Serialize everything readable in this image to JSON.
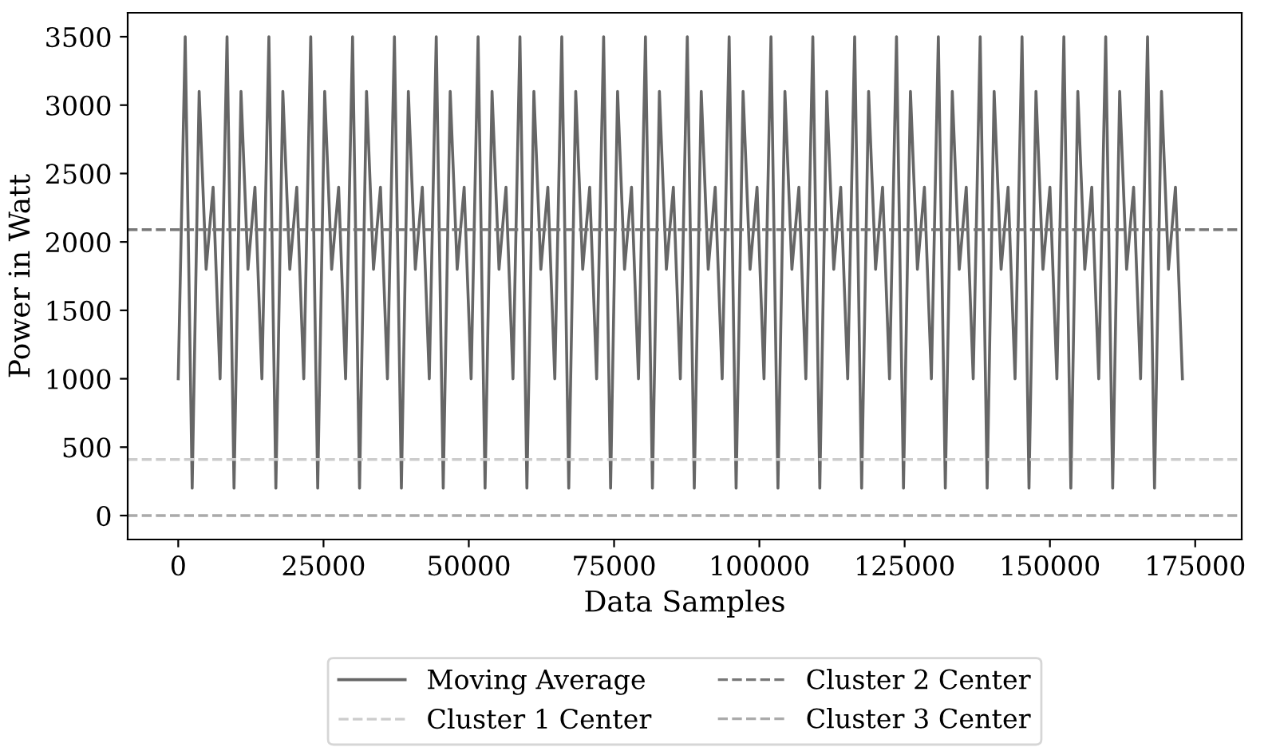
{
  "chart_data": {
    "type": "line",
    "xlabel": "Data Samples",
    "ylabel": "Power in Watt",
    "x": [
      0,
      1200,
      2400,
      3600,
      4800,
      6000,
      7200,
      8400,
      9600,
      10800,
      12000,
      13200,
      14400,
      15600,
      16800,
      18000,
      19200,
      20400,
      21600,
      22800,
      24000,
      25200,
      26400,
      27600,
      28800,
      30000,
      31200,
      32400,
      33600,
      34800,
      36000,
      37200,
      38400,
      39600,
      40800,
      42000,
      43200,
      44400,
      45600,
      46800,
      48000,
      49200,
      50400,
      51600,
      52800,
      54000,
      55200,
      56400,
      57600,
      58800,
      60000,
      61200,
      62400,
      63600,
      64800,
      66000,
      67200,
      68400,
      69600,
      70800,
      72000,
      73200,
      74400,
      75600,
      76800,
      78000,
      79200,
      80400,
      81600,
      82800,
      84000,
      85200,
      86400,
      87600,
      88800,
      90000,
      91200,
      92400,
      93600,
      94800,
      96000,
      97200,
      98400,
      99600,
      100800,
      102000,
      103200,
      104400,
      105600,
      106800,
      108000,
      109200,
      110400,
      111600,
      112800,
      114000,
      115200,
      116400,
      117600,
      118800,
      120000,
      121200,
      122400,
      123600,
      124800,
      126000,
      127200,
      128400,
      129600,
      130800,
      132000,
      133200,
      134400,
      135600,
      136800,
      138000,
      139200,
      140400,
      141600,
      142800,
      144000,
      145200,
      146400,
      147600,
      148800,
      150000,
      151200,
      152400,
      153600,
      154800,
      156000,
      157200,
      158400,
      159600,
      160800,
      162000,
      163200,
      164400,
      165600,
      166800,
      168000,
      169200,
      170400,
      171600,
      172800
    ],
    "series": [
      {
        "name": "Moving Average",
        "color": "#666666",
        "values": [
          1000,
          3500,
          200,
          3100,
          1800,
          2400,
          1000,
          3500,
          200,
          3100,
          1800,
          2400,
          1000,
          3500,
          200,
          3100,
          1800,
          2400,
          1000,
          3500,
          200,
          3100,
          1800,
          2400,
          1000,
          3500,
          200,
          3100,
          1800,
          2400,
          1000,
          3500,
          200,
          3100,
          1800,
          2400,
          1000,
          3500,
          200,
          3100,
          1800,
          2400,
          1000,
          3500,
          200,
          3100,
          1800,
          2400,
          1000,
          3500,
          200,
          3100,
          1800,
          2400,
          1000,
          3500,
          200,
          3100,
          1800,
          2400,
          1000,
          3500,
          200,
          3100,
          1800,
          2400,
          1000,
          3500,
          200,
          3100,
          1800,
          2400,
          1000,
          3500,
          200,
          3100,
          1800,
          2400,
          1000,
          3500,
          200,
          3100,
          1800,
          2400,
          1000,
          3500,
          200,
          3100,
          1800,
          2400,
          1000,
          3500,
          200,
          3100,
          1800,
          2400,
          1000,
          3500,
          200,
          3100,
          1800,
          2400,
          1000,
          3500,
          200,
          3100,
          1800,
          2400,
          1000,
          3500,
          200,
          3100,
          1800,
          2400,
          1000,
          3500,
          200,
          3100,
          1800,
          2400,
          1000,
          3500,
          200,
          3100,
          1800,
          2400,
          1000,
          3500,
          200,
          3100,
          1800,
          2400,
          1000,
          3500,
          200,
          3100,
          1800,
          2400,
          1000,
          3500,
          200,
          3100,
          1800,
          2400,
          1000
        ]
      }
    ],
    "ref_lines": [
      {
        "axis": "y",
        "value": 410,
        "label": "Cluster 1 Center",
        "color": "#cccccc",
        "line_style": "dashed"
      },
      {
        "axis": "y",
        "value": 2090,
        "label": "Cluster 2 Center",
        "color": "#777777",
        "line_style": "dashed"
      },
      {
        "axis": "y",
        "value": 0,
        "label": "Cluster 3 Center",
        "color": "#aaaaaa",
        "line_style": "dashed"
      }
    ],
    "xlim": [
      -8700,
      183000
    ],
    "xticks": [
      0,
      25000,
      50000,
      75000,
      100000,
      125000,
      150000,
      175000
    ],
    "ylim": [
      -175,
      3675
    ],
    "yticks": [
      0,
      500,
      1000,
      1500,
      2000,
      2500,
      3000,
      3500
    ],
    "grid": false,
    "legend": "bottom",
    "line_style": "solid",
    "marker": "none"
  }
}
